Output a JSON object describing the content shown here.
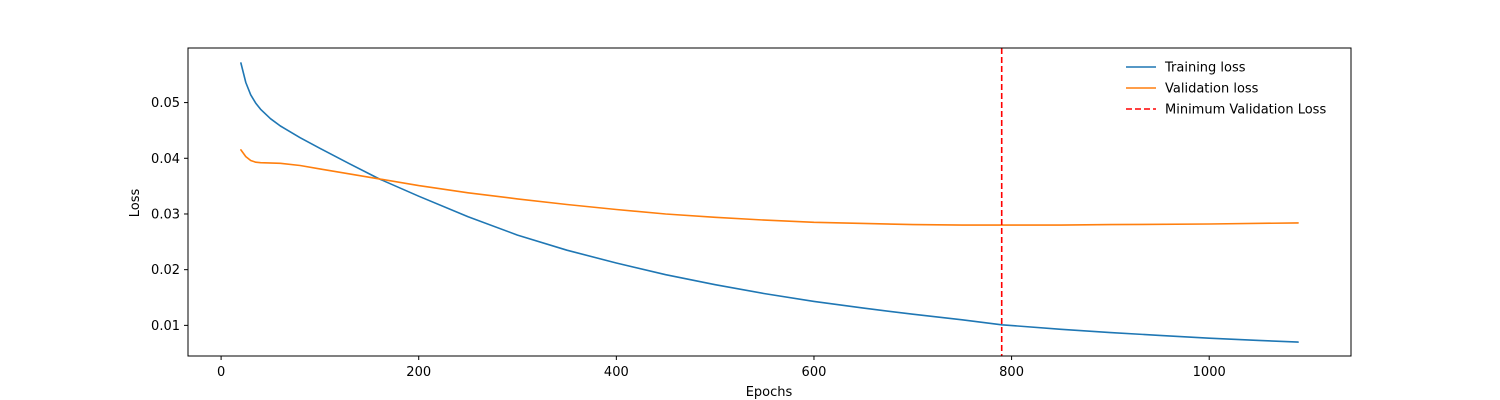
{
  "chart_data": {
    "type": "line",
    "title": "",
    "xlabel": "Epochs",
    "ylabel": "Loss",
    "xlim": [
      -33.5,
      1143.5
    ],
    "ylim": [
      0.0045,
      0.0598
    ],
    "xticks": [
      0,
      200,
      400,
      600,
      800,
      1000
    ],
    "yticks": [
      0.01,
      0.02,
      0.03,
      0.04,
      0.05
    ],
    "xtick_labels": [
      "0",
      "200",
      "400",
      "600",
      "800",
      "1000"
    ],
    "ytick_labels": [
      "0.01",
      "0.02",
      "0.03",
      "0.04",
      "0.05"
    ],
    "grid": false,
    "legend_position": "top-right",
    "series": [
      {
        "name": "Training loss",
        "color": "#1f77b4",
        "style": "solid",
        "x": [
          20,
          25,
          30,
          35,
          40,
          50,
          60,
          80,
          100,
          130,
          160,
          200,
          250,
          300,
          350,
          400,
          450,
          500,
          550,
          600,
          650,
          700,
          750,
          790,
          850,
          900,
          950,
          1000,
          1050,
          1090
        ],
        "y": [
          0.0571,
          0.0536,
          0.0514,
          0.0499,
          0.0488,
          0.0471,
          0.0458,
          0.0437,
          0.0418,
          0.039,
          0.0363,
          0.0332,
          0.0295,
          0.0262,
          0.0235,
          0.0212,
          0.0191,
          0.0173,
          0.0157,
          0.0143,
          0.0131,
          0.012,
          0.011,
          0.0101,
          0.0093,
          0.0087,
          0.0082,
          0.0077,
          0.0073,
          0.007
        ]
      },
      {
        "name": "Validation loss",
        "color": "#ff7f0e",
        "style": "solid",
        "x": [
          20,
          25,
          30,
          35,
          40,
          60,
          80,
          100,
          130,
          160,
          200,
          250,
          300,
          350,
          400,
          450,
          500,
          550,
          600,
          650,
          700,
          750,
          790,
          850,
          900,
          1000,
          1090
        ],
        "y": [
          0.0415,
          0.0403,
          0.0396,
          0.0393,
          0.0392,
          0.0391,
          0.0387,
          0.0381,
          0.0372,
          0.0363,
          0.0351,
          0.0338,
          0.0327,
          0.0317,
          0.0308,
          0.03,
          0.0294,
          0.0289,
          0.0285,
          0.0283,
          0.0281,
          0.028,
          0.028,
          0.028,
          0.0281,
          0.0282,
          0.0284
        ]
      }
    ],
    "vlines": [
      {
        "name": "Minimum Validation Loss",
        "x": 790,
        "color": "#ff0000",
        "style": "dashed"
      }
    ]
  }
}
